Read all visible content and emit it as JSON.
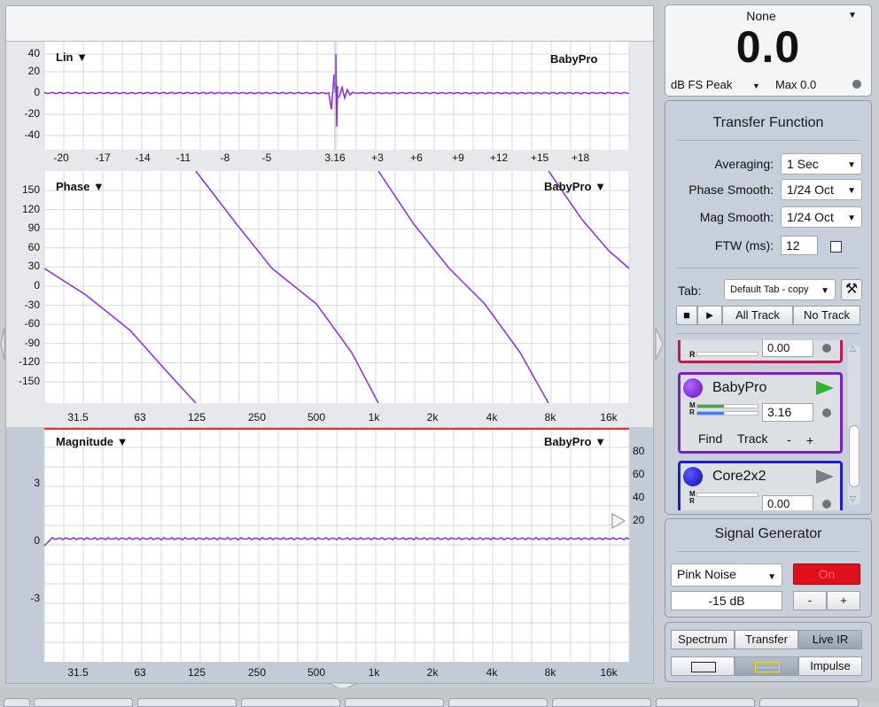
{
  "impulse_panel": {
    "title": "Lin ▼",
    "source": "BabyPro",
    "y_ticks": [
      "40",
      "20",
      "0",
      "-20",
      "-40"
    ],
    "x_ticks": [
      "-20",
      "-17",
      "-14",
      "-11",
      "-8",
      "-5",
      "3.16",
      "+3",
      "+6",
      "+9",
      "+12",
      "+15",
      "+18"
    ]
  },
  "phase_panel": {
    "title": "Phase ▼",
    "source": "BabyPro ▼",
    "y_ticks": [
      "150",
      "120",
      "90",
      "60",
      "30",
      "0",
      "-30",
      "-60",
      "-90",
      "-120",
      "-150"
    ],
    "x_ticks": [
      "31.5",
      "63",
      "125",
      "250",
      "500",
      "1k",
      "2k",
      "4k",
      "8k",
      "16k"
    ]
  },
  "magnitude_panel": {
    "title": "Magnitude ▼",
    "source": "BabyPro ▼",
    "y_ticks": [
      "3",
      "0",
      "-3"
    ],
    "right_ticks": [
      "80",
      "60",
      "40",
      "20"
    ],
    "x_ticks": [
      "31.5",
      "63",
      "125",
      "250",
      "500",
      "1k",
      "2k",
      "4k",
      "8k",
      "16k"
    ]
  },
  "meter": {
    "source": "None",
    "value": "0.0",
    "mode": "dB FS Peak",
    "max": "Max 0.0"
  },
  "transfer_function": {
    "title": "Transfer Function",
    "averaging_label": "Averaging:",
    "averaging_value": "1 Sec",
    "phase_smooth_label": "Phase Smooth:",
    "phase_smooth_value": "1/24 Oct",
    "mag_smooth_label": "Mag Smooth:",
    "mag_smooth_value": "1/24 Oct",
    "ftw_label": "FTW (ms):",
    "ftw_value": "12",
    "tab_label": "Tab:",
    "tab_value": "Default Tab - copy",
    "all_track": "All Track",
    "no_track": "No Track"
  },
  "tracks": [
    {
      "name": "",
      "value": "0.00",
      "color": "#c8174f",
      "meter_r": "R"
    },
    {
      "name": "BabyPro",
      "value": "3.16",
      "color": "#7a1fc7",
      "meter_m": "M",
      "meter_r": "R",
      "find": "Find",
      "track": "Track",
      "minus": "-",
      "plus": "+"
    },
    {
      "name": "Core2x2",
      "value": "0.00",
      "color": "#1b1bd8",
      "meter_m": "M",
      "meter_r": "R"
    }
  ],
  "signal_generator": {
    "title": "Signal Generator",
    "type": "Pink Noise",
    "on": "On",
    "level": "-15 dB",
    "minus": "-",
    "plus": "+"
  },
  "modes": {
    "spectrum": "Spectrum",
    "transfer": "Transfer",
    "live_ir": "Live IR",
    "impulse": "Impulse"
  },
  "colors": {
    "trace": "#8a2be2",
    "on_button": "#e0101a",
    "play_green": "#2fb52f"
  }
}
